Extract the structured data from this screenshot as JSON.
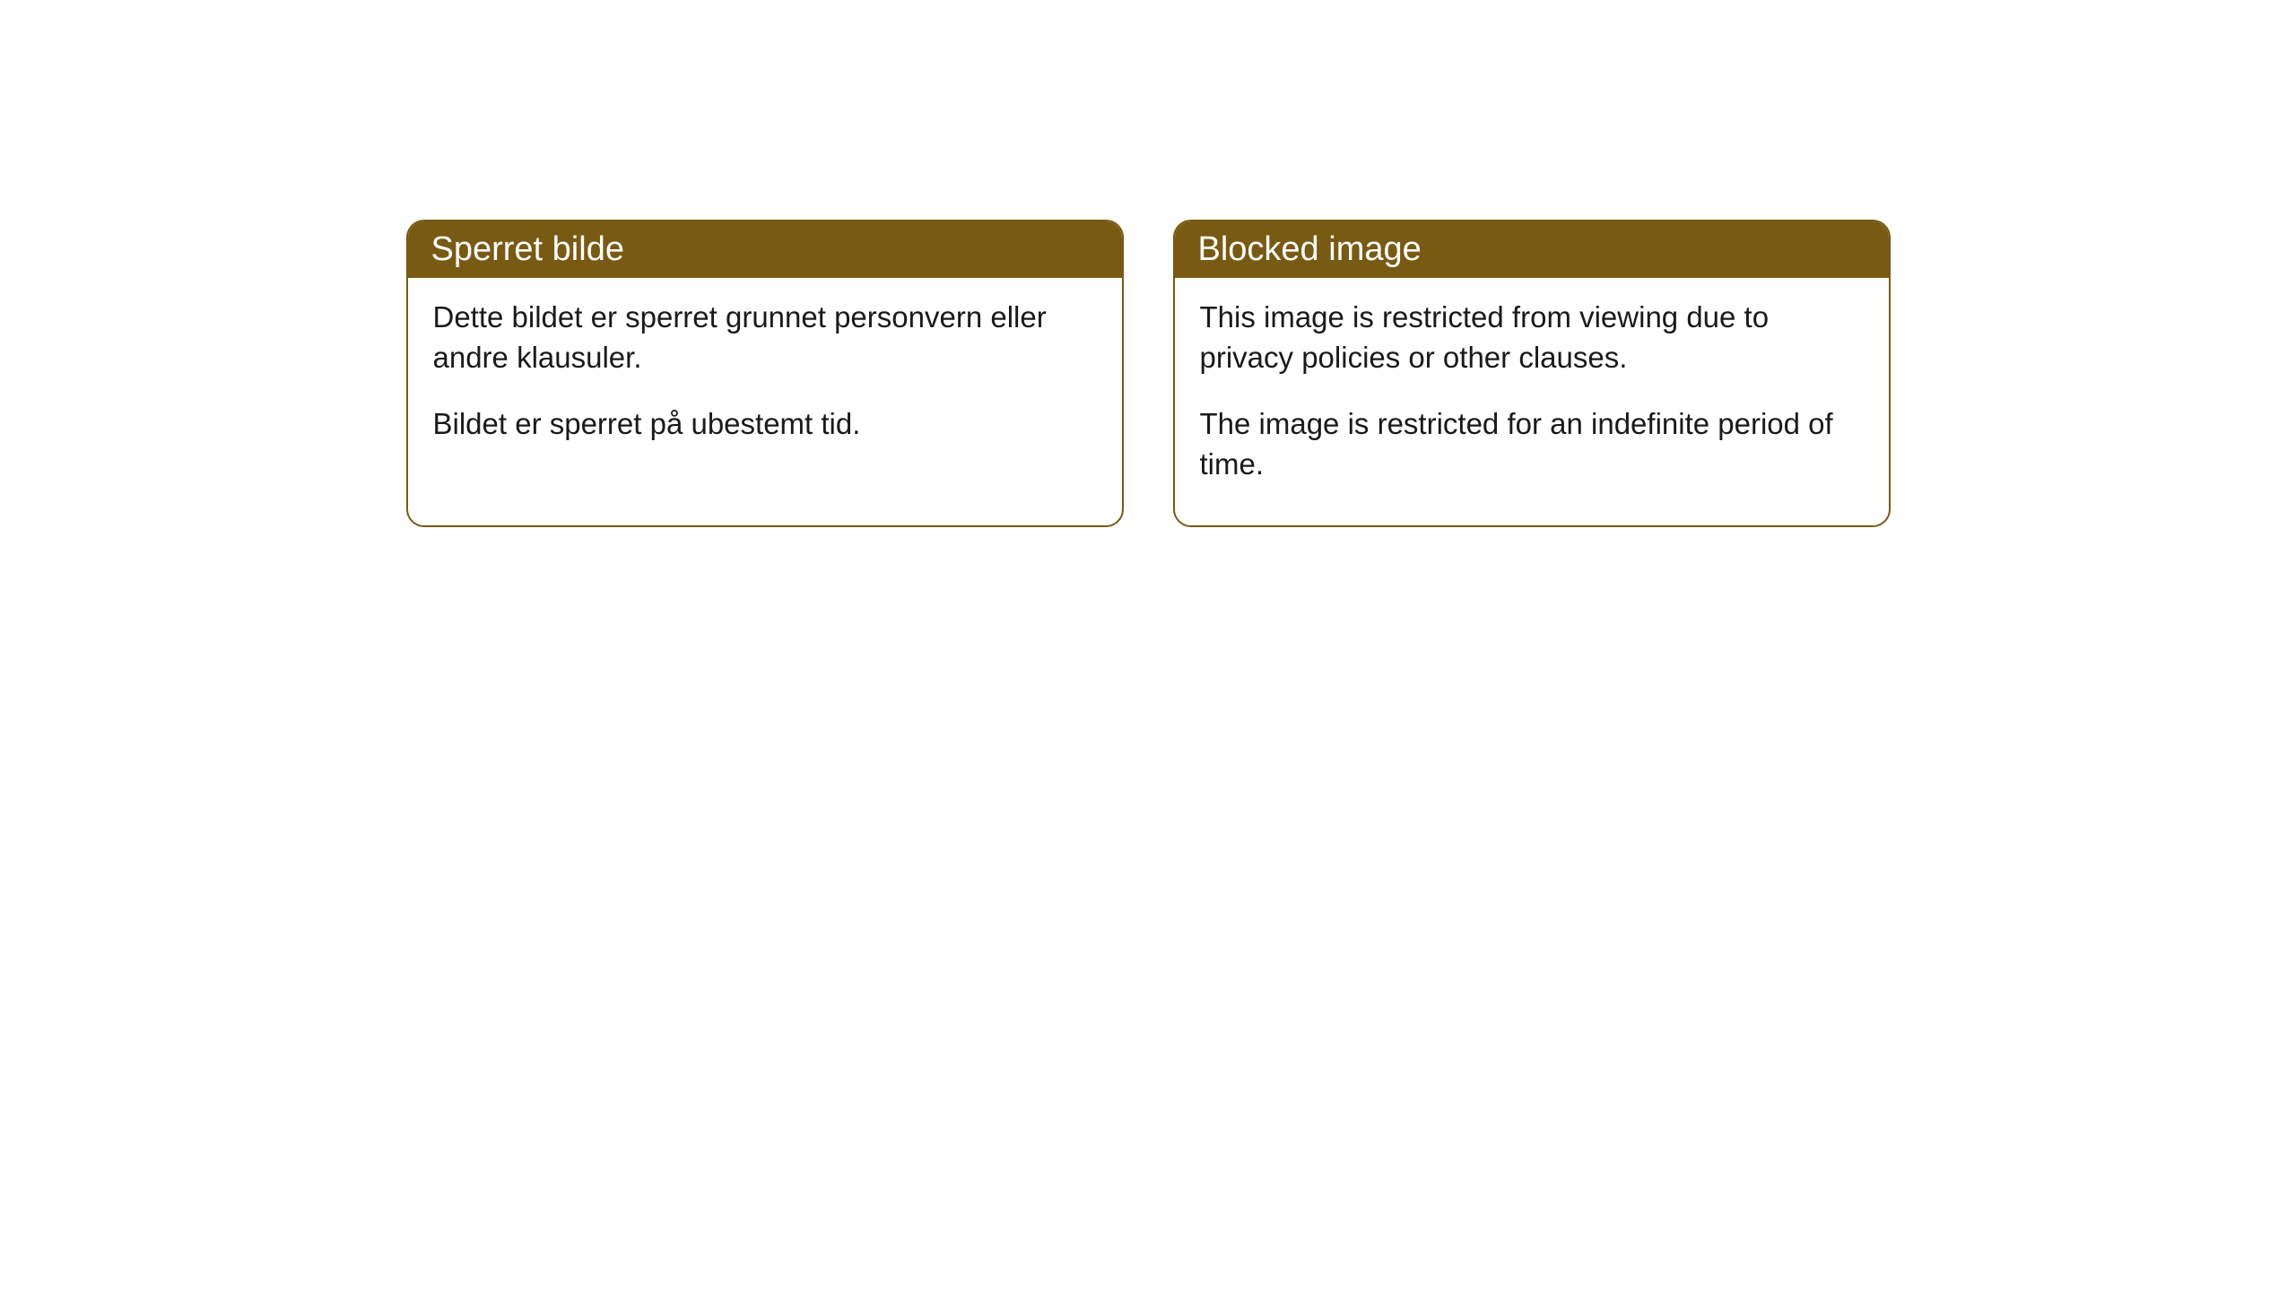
{
  "cards": [
    {
      "title": "Sperret bilde",
      "paragraph1": "Dette bildet er sperret grunnet personvern eller andre klausuler.",
      "paragraph2": "Bildet er sperret på ubestemt tid."
    },
    {
      "title": "Blocked image",
      "paragraph1": "This image is restricted from viewing due to privacy policies or other clauses.",
      "paragraph2": "The image is restricted for an indefinite period of time."
    }
  ],
  "style": {
    "header_bg": "#785a12",
    "header_text": "#ffffff",
    "border_color": "#785a12",
    "body_text": "#1a1a1a",
    "page_bg": "#ffffff",
    "border_radius": 20,
    "header_fontsize": 38,
    "body_fontsize": 33
  }
}
